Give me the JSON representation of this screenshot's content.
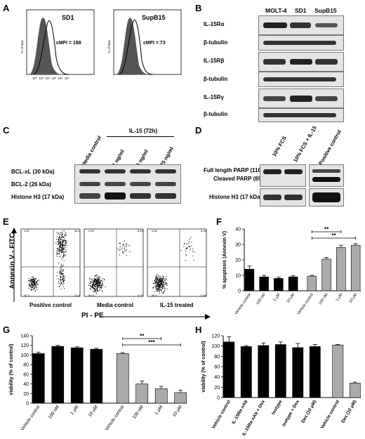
{
  "panels": {
    "A": "A",
    "B": "B",
    "C": "C",
    "D": "D",
    "E": "E",
    "F": "F",
    "G": "G",
    "H": "H"
  },
  "panel_a": {
    "plots": [
      {
        "title": "SD1",
        "cmfi": "cMFI = 188"
      },
      {
        "title": "SupB15",
        "cmfi": "cMFI = 73"
      }
    ],
    "ylabel": "% of Max",
    "ticks": [
      "10⁰",
      "10¹",
      "10²",
      "10³",
      "10⁴",
      "10⁵"
    ]
  },
  "panel_b": {
    "cols": [
      "MOLT-4",
      "SD1",
      "SupB15"
    ],
    "rows": [
      "IL-15Rα",
      "β-tubulin",
      "IL-15Rβ",
      "β-tubulin",
      "IL-15Rγ",
      "β-tubulin"
    ]
  },
  "panel_c": {
    "group_label": "IL-15 (72h)",
    "cols": [
      "Media control",
      "1 ng/ml",
      "5 ng/ml",
      "25 ng/ml"
    ],
    "rows": [
      "BCL-xL (30 kDa)",
      "BCL-2 (26 kDa)",
      "Histone H3 (17 kDa)"
    ]
  },
  "panel_d": {
    "cols": [
      "10% FCS",
      "10% FCS + IL-15",
      "Positive control"
    ],
    "rows": [
      "Full length PARP (116 kDa)",
      "Cleaved PARP (89 kDa)",
      "Histone H3 (17 kDa)"
    ]
  },
  "panel_e": {
    "ylabel": "Annexin V - FITC",
    "xlabel": "PI - PE",
    "plots": [
      {
        "label": "Positive control",
        "q": [
          "1.62",
          "58.1",
          "32.3",
          "22.4"
        ]
      },
      {
        "label": "Media control",
        "q": [
          "0.69",
          "8.53",
          "90.5",
          "0.32"
        ]
      },
      {
        "label": "IL-15 treated",
        "q": [
          "0.66",
          "8.48",
          "90.4",
          "0.44"
        ]
      }
    ]
  },
  "chart_data": [
    {
      "panel": "F",
      "type": "bar",
      "ylabel": "% apoptosis (Annexin V)",
      "ylim": [
        0,
        40
      ],
      "yticks": [
        "0",
        "10",
        "20",
        "30",
        "40"
      ],
      "categories": [
        "Vehicle control",
        "100 nM",
        "1 μM",
        "10 μM",
        "Vehicle control",
        "100 nM",
        "1 μM",
        "10 μM"
      ],
      "values": [
        14,
        9,
        8,
        9,
        9.5,
        20.5,
        28,
        29.5
      ],
      "errors": [
        2,
        1,
        0.8,
        0.8,
        0.5,
        1,
        1.5,
        1
      ],
      "colors": [
        "#000000",
        "#000000",
        "#000000",
        "#000000",
        "#aaaaaa",
        "#aaaaaa",
        "#aaaaaa",
        "#aaaaaa"
      ],
      "annotations": [
        {
          "text": "**",
          "from": 4,
          "to": 6
        },
        {
          "text": "**",
          "from": 4,
          "to": 7
        }
      ]
    },
    {
      "panel": "G",
      "type": "bar",
      "ylabel": "viability (% of control)",
      "ylim": [
        0,
        140
      ],
      "yticks": [
        "0",
        "20",
        "40",
        "60",
        "80",
        "100",
        "120",
        "140"
      ],
      "categories": [
        "Vehicle control",
        "100 nM",
        "1 μM",
        "10 μM",
        "Vehicle control",
        "100 nM",
        "1 μM",
        "10 μM"
      ],
      "values": [
        103,
        118,
        115,
        112,
        103,
        40,
        30,
        22
      ],
      "errors": [
        3,
        2,
        2,
        2,
        2,
        6,
        5,
        5
      ],
      "colors": [
        "#000000",
        "#000000",
        "#000000",
        "#000000",
        "#aaaaaa",
        "#aaaaaa",
        "#aaaaaa",
        "#aaaaaa"
      ],
      "annotations": [
        {
          "text": "**",
          "from": 4,
          "to": 6
        },
        {
          "text": "***",
          "from": 4,
          "to": 7
        }
      ]
    },
    {
      "panel": "H",
      "type": "bar",
      "ylabel": "viability (% of control)",
      "ylim": [
        0,
        120
      ],
      "yticks": [
        "0",
        "20",
        "40",
        "60",
        "80",
        "100",
        "120"
      ],
      "categories": [
        "Vehicle control",
        "IL-15Rα nAb",
        "IL-15Rα nAb + Dex",
        "Isotype",
        "Isotype + Dex",
        "Dex (10 μM)",
        "Vehicle control",
        "Dex (10 μM)"
      ],
      "values": [
        108,
        99,
        101,
        103,
        97,
        99,
        102,
        28
      ],
      "errors": [
        10,
        2,
        5,
        5,
        8,
        4,
        1,
        2
      ],
      "colors": [
        "#000000",
        "#000000",
        "#000000",
        "#000000",
        "#000000",
        "#000000",
        "#aaaaaa",
        "#aaaaaa"
      ],
      "annotations": []
    }
  ]
}
